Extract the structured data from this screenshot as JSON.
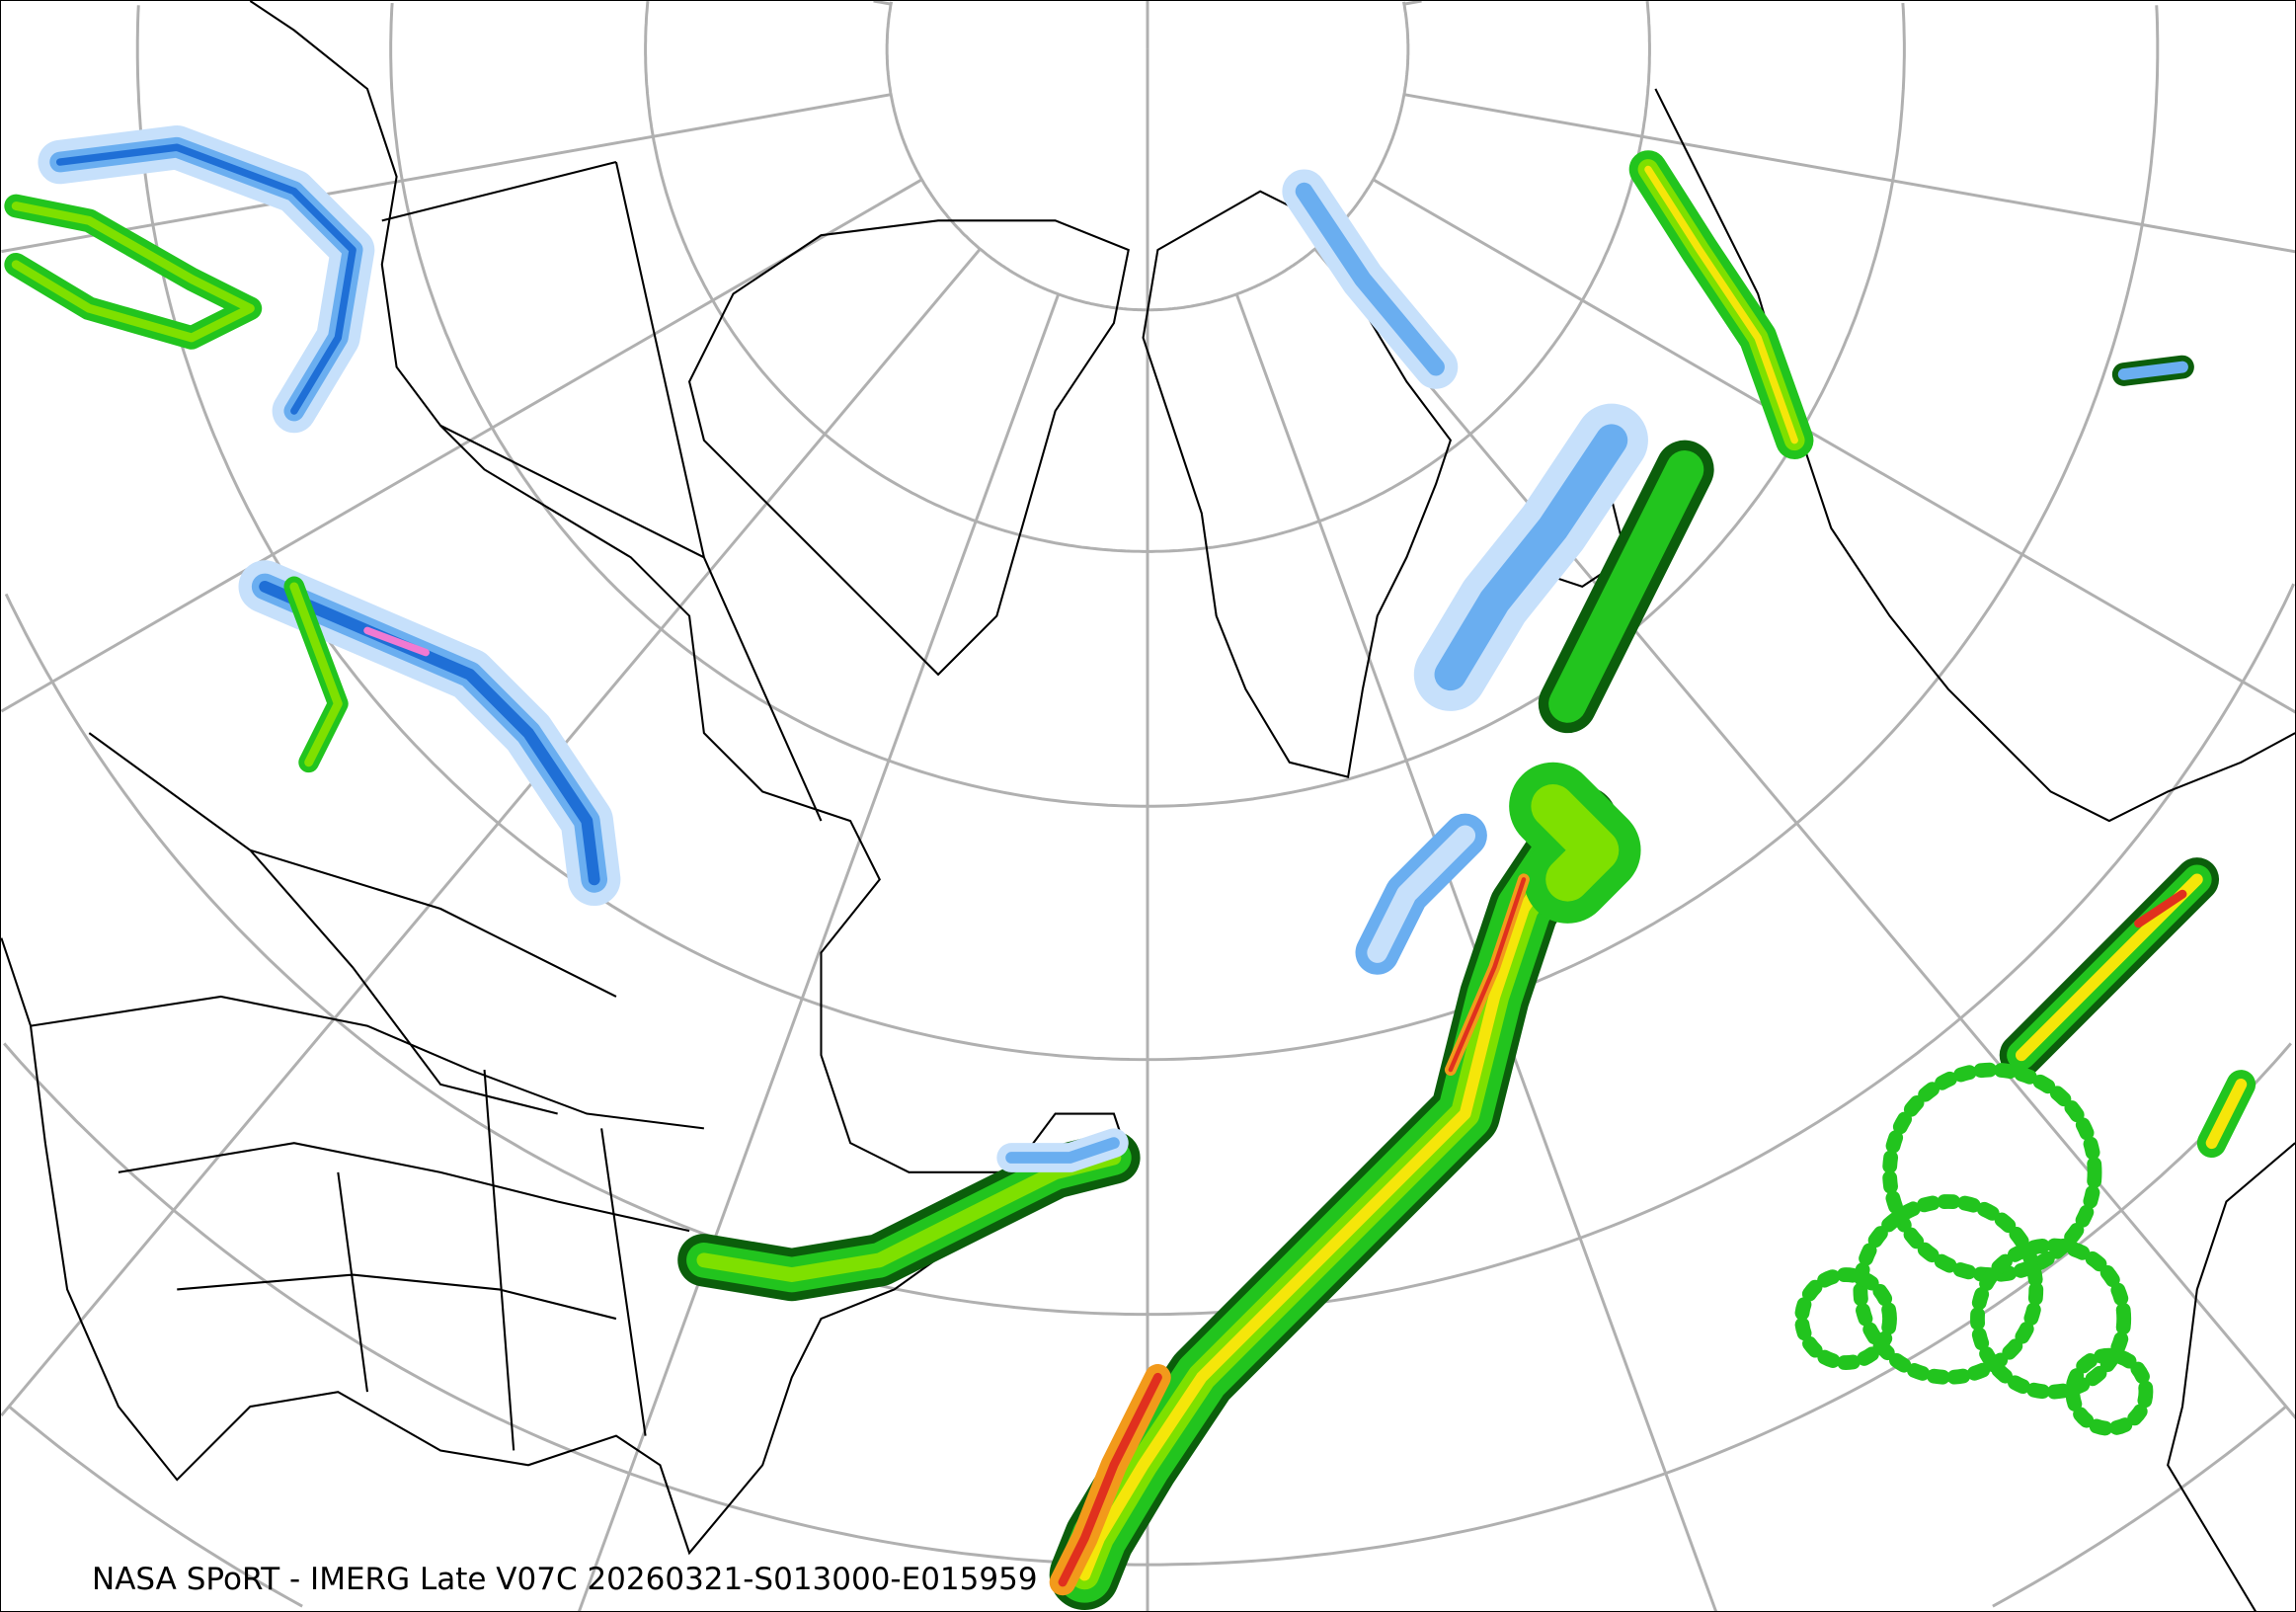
{
  "map": {
    "caption": "NASA SPoRT - IMERG Late V07C 20260321-S013000-E015959",
    "projection": "north-polar-stereographic",
    "graticule_color": "#b0b0b0",
    "coastline_color": "#000000",
    "precip_colors": {
      "snow_light": "#c6e0fb",
      "snow_moderate": "#6aaef0",
      "snow_heavy": "#1f6fd6",
      "rain_light": "#22c41e",
      "rain_dark": "#0b5e0b",
      "rain_moderate": "#7ee000",
      "rain_heavy": "#f5e60a",
      "rain_very_heavy": "#f29a1b",
      "rain_extreme": "#e0301e",
      "mixed": "#f07ad2"
    }
  }
}
